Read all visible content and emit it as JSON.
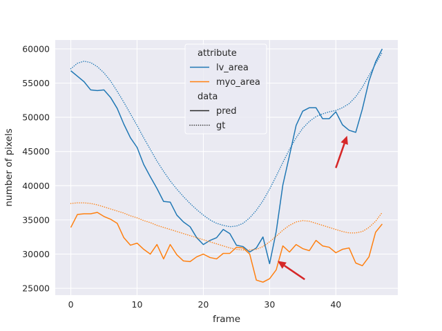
{
  "chart_data": {
    "type": "line",
    "xlabel": "frame",
    "ylabel": "number of pixels",
    "xlim": [
      -2.35,
      49.35
    ],
    "ylim": [
      24000,
      61300
    ],
    "xticks": [
      0,
      10,
      20,
      30,
      40
    ],
    "yticks": [
      25000,
      30000,
      35000,
      40000,
      45000,
      50000,
      55000,
      60000
    ],
    "grid": true,
    "background": "#eaeaf2",
    "legend": {
      "placement": "top-center",
      "groups": [
        {
          "title": "attribute",
          "entries": [
            {
              "label": "lv_area",
              "color": "#1f77b4",
              "style": "solid"
            },
            {
              "label": "myo_area",
              "color": "#ff7f0e",
              "style": "solid"
            }
          ]
        },
        {
          "title": "data",
          "entries": [
            {
              "label": "pred",
              "color": "#262626",
              "style": "solid"
            },
            {
              "label": "gt",
              "color": "#262626",
              "style": "dotted"
            }
          ]
        }
      ]
    },
    "series": [
      {
        "name": "lv_area",
        "data": "pred",
        "color": "#1f77b4",
        "style": "solid",
        "x": [
          0,
          1,
          2,
          3,
          4,
          5,
          6,
          7,
          8,
          9,
          10,
          11,
          12,
          13,
          14,
          15,
          16,
          17,
          18,
          19,
          20,
          21,
          22,
          23,
          24,
          25,
          26,
          27,
          28,
          29,
          30,
          31,
          32,
          33,
          34,
          35,
          36,
          37,
          38,
          39,
          40,
          41,
          42,
          43,
          44,
          45,
          46,
          47
        ],
        "y": [
          56800,
          56000,
          55200,
          54000,
          53900,
          54000,
          52900,
          51300,
          49000,
          47000,
          45600,
          43100,
          41300,
          39600,
          37700,
          37600,
          35700,
          34700,
          34000,
          32400,
          31400,
          32000,
          32400,
          33600,
          33000,
          31300,
          31100,
          30300,
          30900,
          32500,
          28600,
          33300,
          40100,
          44400,
          48800,
          50900,
          51400,
          51400,
          49800,
          49800,
          50800,
          48900,
          48100,
          47800,
          51200,
          55300,
          58100,
          60000
        ]
      },
      {
        "name": "myo_area",
        "data": "pred",
        "color": "#ff7f0e",
        "style": "solid",
        "x": [
          0,
          1,
          2,
          3,
          4,
          5,
          6,
          7,
          8,
          9,
          10,
          11,
          12,
          13,
          14,
          15,
          16,
          17,
          18,
          19,
          20,
          21,
          22,
          23,
          24,
          25,
          26,
          27,
          28,
          29,
          30,
          31,
          32,
          33,
          34,
          35,
          36,
          37,
          38,
          39,
          40,
          41,
          42,
          43,
          44,
          45,
          46,
          47
        ],
        "y": [
          33900,
          35800,
          35900,
          35900,
          36100,
          35500,
          35100,
          34500,
          32400,
          31300,
          31600,
          30700,
          30000,
          31400,
          29300,
          31400,
          29900,
          29000,
          28900,
          29600,
          30000,
          29500,
          29300,
          30100,
          30100,
          31000,
          30900,
          30000,
          26200,
          25900,
          26400,
          27700,
          31200,
          30300,
          31400,
          30800,
          30500,
          32000,
          31200,
          31000,
          30200,
          30700,
          30900,
          28700,
          28300,
          29600,
          33200,
          34400
        ]
      },
      {
        "name": "lv_area",
        "data": "gt",
        "color": "#1f77b4",
        "style": "dotted",
        "x": [
          0,
          1,
          2,
          3,
          4,
          5,
          6,
          7,
          8,
          9,
          10,
          11,
          12,
          13,
          14,
          15,
          16,
          17,
          18,
          19,
          20,
          21,
          22,
          23,
          24,
          25,
          26,
          27,
          28,
          29,
          30,
          31,
          32,
          33,
          34,
          35,
          36,
          37,
          38,
          39,
          40,
          41,
          42,
          43,
          44,
          45,
          46,
          47
        ],
        "y": [
          57100,
          57900,
          58200,
          58000,
          57400,
          56500,
          55300,
          53800,
          52200,
          50500,
          48800,
          47000,
          45300,
          43600,
          42100,
          40700,
          39500,
          38400,
          37400,
          36500,
          35700,
          35000,
          34500,
          34200,
          34000,
          34100,
          34500,
          35300,
          36400,
          37800,
          39500,
          41400,
          43400,
          45300,
          47000,
          48400,
          49400,
          50100,
          50500,
          50800,
          51000,
          51400,
          52000,
          53000,
          54400,
          56100,
          57800,
          59500
        ]
      },
      {
        "name": "myo_area",
        "data": "gt",
        "color": "#ff7f0e",
        "style": "dotted",
        "x": [
          0,
          1,
          2,
          3,
          4,
          5,
          6,
          7,
          8,
          9,
          10,
          11,
          12,
          13,
          14,
          15,
          16,
          17,
          18,
          19,
          20,
          21,
          22,
          23,
          24,
          25,
          26,
          27,
          28,
          29,
          30,
          31,
          32,
          33,
          34,
          35,
          36,
          37,
          38,
          39,
          40,
          41,
          42,
          43,
          44,
          45,
          46,
          47
        ],
        "y": [
          37400,
          37500,
          37500,
          37400,
          37200,
          36900,
          36600,
          36300,
          36000,
          35600,
          35300,
          34900,
          34600,
          34200,
          33900,
          33600,
          33300,
          33000,
          32700,
          32400,
          32100,
          31800,
          31500,
          31200,
          30900,
          30700,
          30600,
          30600,
          30700,
          31100,
          31800,
          32600,
          33500,
          34200,
          34700,
          34900,
          34800,
          34500,
          34200,
          33900,
          33600,
          33300,
          33100,
          33100,
          33300,
          33900,
          34800,
          36100
        ]
      }
    ],
    "annotations": [
      {
        "type": "arrow",
        "color": "#d62728",
        "from": [
          40.0,
          42600
        ],
        "to": [
          41.7,
          47300
        ]
      },
      {
        "type": "arrow",
        "color": "#d62728",
        "from": [
          35.3,
          26300
        ],
        "to": [
          31.2,
          29000
        ]
      }
    ]
  }
}
